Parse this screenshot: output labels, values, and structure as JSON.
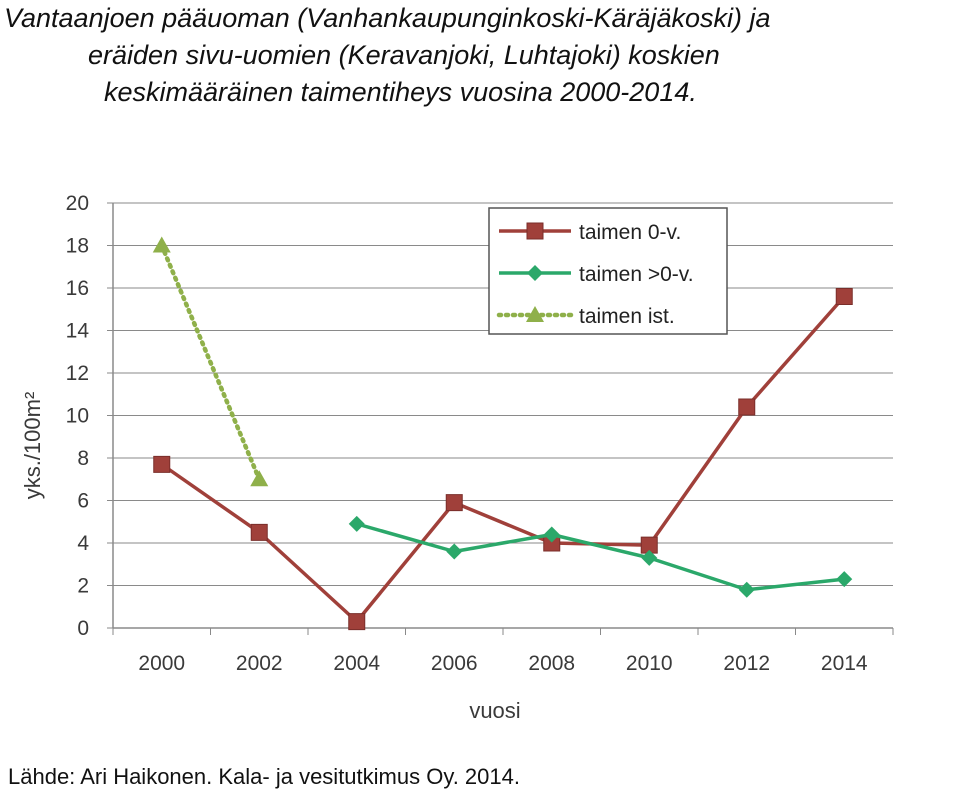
{
  "title_lines": [
    "Vantaanjoen pääuoman (Vanhankaupunginkoski-Käräjäkoski) ja",
    "eräiden sivu-uomien (Keravanjoki, Luhtajoki) koskien",
    "keskimääräinen taimentiheys  vuosina 2000-2014."
  ],
  "source": "Lähde: Ari Haikonen. Kala- ja vesitutkimus Oy. 2014.",
  "chart_data": {
    "type": "line",
    "title": "Vantaanjoen pääuoman (Vanhankaupunginkoski-Käräjäkoski) ja eräiden sivu-uomien (Keravanjoki, Luhtajoki) koskien keskimääräinen taimentiheys  vuosina 2000-2014.",
    "xlabel": "vuosi",
    "ylabel": "yks./100m²",
    "x": [
      2000,
      2002,
      2004,
      2006,
      2008,
      2010,
      2012,
      2014
    ],
    "ylim": [
      0,
      20
    ],
    "yticks": [
      0,
      2,
      4,
      6,
      8,
      10,
      12,
      14,
      16,
      18,
      20
    ],
    "grid": true,
    "legend_position": "top-right",
    "series": [
      {
        "name": "taimen 0-v.",
        "values": [
          7.7,
          4.5,
          0.3,
          5.9,
          4.0,
          3.9,
          10.4,
          15.6
        ],
        "color": "#A0403A",
        "marker": "square",
        "line": "solid"
      },
      {
        "name": "taimen >0-v.",
        "values": [
          null,
          null,
          4.9,
          3.6,
          4.4,
          3.3,
          1.8,
          2.3
        ],
        "color": "#2BA86A",
        "marker": "diamond",
        "line": "solid"
      },
      {
        "name": "taimen ist.",
        "values": [
          18.0,
          7.0,
          null,
          null,
          null,
          null,
          null,
          null
        ],
        "color": "#8FB04A",
        "marker": "triangle",
        "line": "dotted"
      }
    ]
  }
}
